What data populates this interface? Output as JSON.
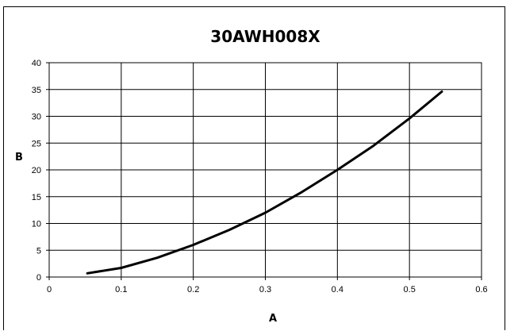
{
  "chart_data": {
    "type": "line",
    "title": "30AWH008X",
    "xlabel": "A",
    "ylabel": "B",
    "xlim": [
      0,
      0.6
    ],
    "ylim": [
      0,
      40
    ],
    "x_ticks": [
      "0",
      "0.1",
      "0.2",
      "0.3",
      "0.4",
      "0.5",
      "0.6"
    ],
    "y_ticks": [
      "0",
      "5",
      "10",
      "15",
      "20",
      "25",
      "30",
      "35",
      "40"
    ],
    "x_tick_values": [
      0,
      0.1,
      0.2,
      0.3,
      0.4,
      0.5,
      0.6
    ],
    "y_tick_values": [
      0,
      5,
      10,
      15,
      20,
      25,
      30,
      35,
      40
    ],
    "grid": true,
    "legend": "none",
    "series": [
      {
        "color": "#000000",
        "x": [
          0.053,
          0.1,
          0.15,
          0.2,
          0.25,
          0.3,
          0.35,
          0.4,
          0.45,
          0.5,
          0.545
        ],
        "y": [
          0.7,
          1.7,
          3.6,
          6.0,
          8.8,
          12.0,
          15.8,
          20.0,
          24.5,
          29.6,
          34.6
        ]
      }
    ]
  }
}
